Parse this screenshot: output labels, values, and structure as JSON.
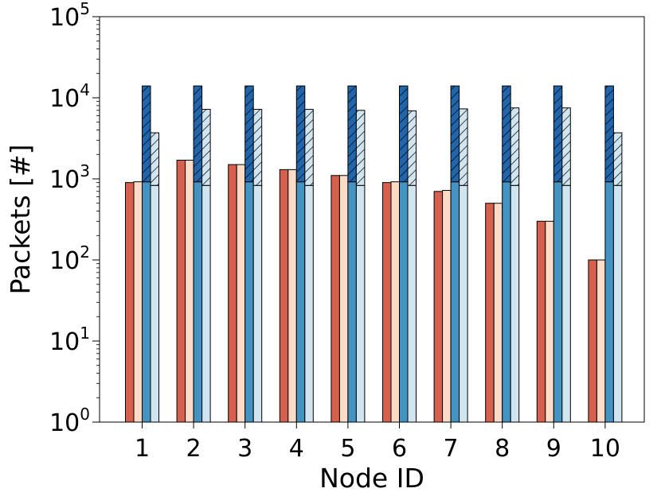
{
  "chart_data": {
    "type": "bar",
    "title": "",
    "xlabel": "Node ID",
    "ylabel": "Packets [#]",
    "yscale": "log",
    "ylim": [
      1,
      100000
    ],
    "y_ticks": [
      {
        "base": "10",
        "exp": "0"
      },
      {
        "base": "10",
        "exp": "1"
      },
      {
        "base": "10",
        "exp": "2"
      },
      {
        "base": "10",
        "exp": "3"
      },
      {
        "base": "10",
        "exp": "4"
      },
      {
        "base": "10",
        "exp": "5"
      }
    ],
    "categories": [
      "1",
      "2",
      "3",
      "4",
      "5",
      "6",
      "7",
      "8",
      "9",
      "10"
    ],
    "series": [
      {
        "name": "series-1",
        "color": "#d6604d",
        "values": [
          900,
          1700,
          1500,
          1300,
          1100,
          900,
          700,
          500,
          300,
          100
        ]
      },
      {
        "name": "series-2",
        "color": "#fddbc7",
        "values": [
          920,
          1700,
          1500,
          1300,
          1100,
          920,
          720,
          500,
          300,
          100
        ]
      },
      {
        "name": "series-3",
        "color": "#4393c3",
        "values": [
          920,
          920,
          920,
          920,
          920,
          920,
          920,
          920,
          920,
          920
        ],
        "hatched_top": [
          14000,
          14000,
          14000,
          14000,
          14000,
          14000,
          14000,
          14000,
          14000,
          14000
        ],
        "hatch_color": "#2166ac"
      },
      {
        "name": "series-4",
        "color": "#d1e5f0",
        "values": [
          830,
          830,
          830,
          830,
          830,
          830,
          830,
          830,
          830,
          830
        ],
        "hatched_top": [
          3700,
          7200,
          7200,
          7200,
          7000,
          6900,
          7300,
          7500,
          7500,
          3700
        ],
        "hatch_color": "#d1e5f0"
      }
    ]
  }
}
